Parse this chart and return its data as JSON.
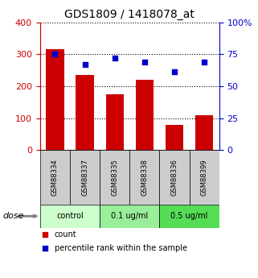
{
  "title": "GDS1809 / 1418078_at",
  "categories": [
    "GSM88334",
    "GSM88337",
    "GSM88335",
    "GSM88338",
    "GSM88336",
    "GSM88399"
  ],
  "bar_values": [
    315,
    235,
    175,
    220,
    80,
    110
  ],
  "percentile_values": [
    75,
    67,
    72,
    69,
    61,
    69
  ],
  "bar_color": "#cc0000",
  "percentile_color": "#0000cc",
  "ylim_left": [
    0,
    400
  ],
  "ylim_right": [
    0,
    100
  ],
  "yticks_left": [
    0,
    100,
    200,
    300,
    400
  ],
  "yticks_right": [
    0,
    25,
    50,
    75,
    100
  ],
  "yticklabels_right": [
    "0",
    "25",
    "50",
    "75",
    "100%"
  ],
  "dose_groups": [
    {
      "label": "control",
      "indices": [
        0,
        1
      ],
      "color": "#ccffcc"
    },
    {
      "label": "0.1 ug/ml",
      "indices": [
        2,
        3
      ],
      "color": "#99ee99"
    },
    {
      "label": "0.5 ug/ml",
      "indices": [
        4,
        5
      ],
      "color": "#55dd55"
    }
  ],
  "dose_label": "dose",
  "legend_count_label": "count",
  "legend_percentile_label": "percentile rank within the sample",
  "background_color": "#ffffff",
  "table_row_color": "#cccccc",
  "left_axis_color": "#cc0000",
  "right_axis_color": "#0000cc"
}
